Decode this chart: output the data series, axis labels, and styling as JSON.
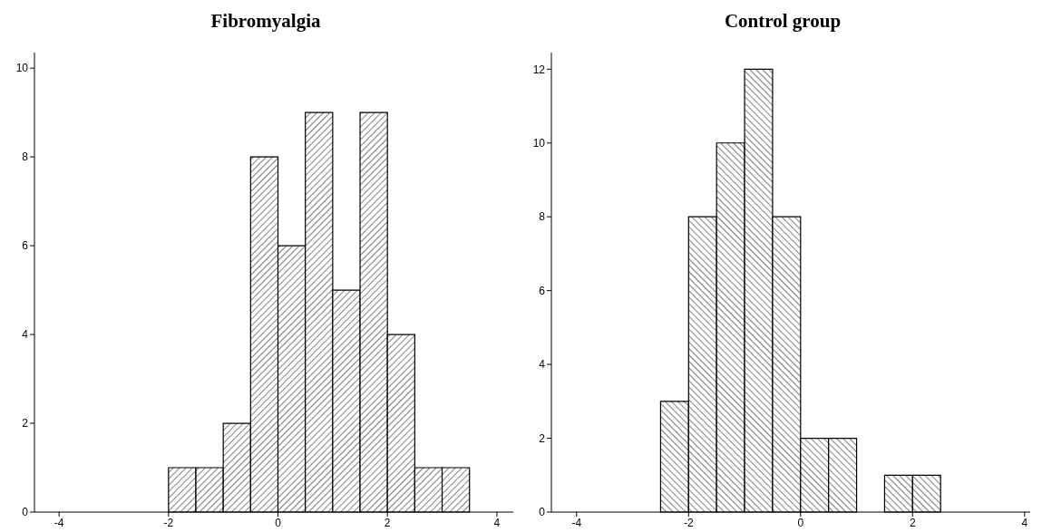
{
  "chart_data": [
    {
      "type": "histogram",
      "title": "Fibromyalgia",
      "bins": [
        -2,
        -1.5,
        -1,
        -0.5,
        0,
        0.5,
        1,
        1.5,
        2,
        2.5,
        3,
        3.5
      ],
      "values": [
        1,
        1,
        2,
        8,
        6,
        9,
        5,
        9,
        4,
        1,
        1
      ],
      "color": "#000000",
      "xlim": [
        -4.45,
        4.3
      ],
      "xticks": [
        -4,
        -2,
        0,
        2,
        4
      ],
      "ylim": [
        0,
        10.35
      ],
      "yticks": [
        0,
        2,
        4,
        6,
        8,
        10
      ],
      "grid": false
    },
    {
      "type": "histogram",
      "title": "Control group",
      "bins": [
        -2.5,
        -2,
        -1.5,
        -1,
        -0.5,
        0,
        0.5,
        1,
        1.5,
        2,
        2.5
      ],
      "values": [
        3,
        8,
        10,
        12,
        8,
        2,
        2,
        0,
        1,
        1
      ],
      "color": "#000000",
      "xlim": [
        -4.45,
        4.1
      ],
      "xticks": [
        -4,
        -2,
        0,
        2,
        4
      ],
      "ylim": [
        0,
        12.45
      ],
      "yticks": [
        0,
        2,
        4,
        6,
        8,
        10,
        12
      ],
      "grid": false
    }
  ]
}
